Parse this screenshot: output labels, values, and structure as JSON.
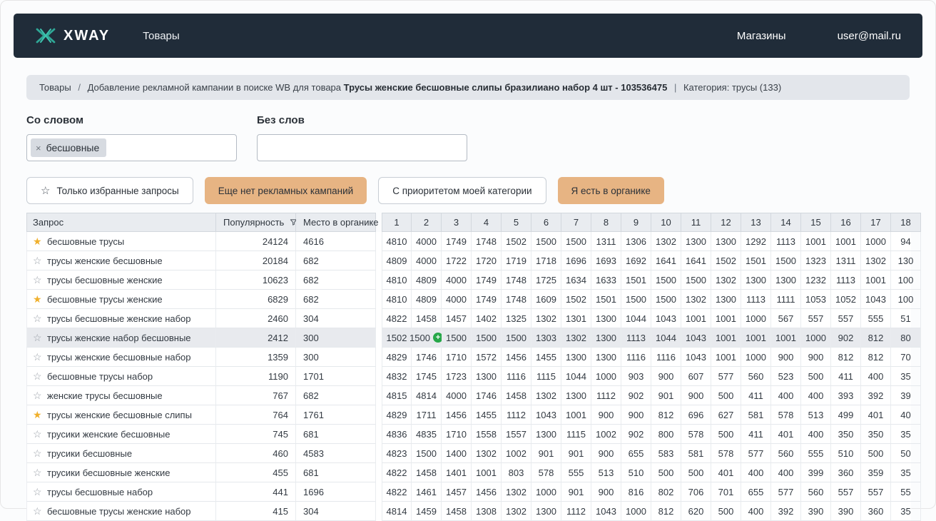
{
  "header": {
    "logo_text": "XWAY",
    "nav_products": "Товары",
    "shops": "Магазины",
    "user_email": "user@mail.ru"
  },
  "breadcrumb": {
    "root": "Товары",
    "separator": "/",
    "text": "Добавление рекламной кампании в поиске WB для товара",
    "product": "Трусы женские бесшовные слипы бразилиано набор 4 шт - 103536475",
    "pipe": "|",
    "category": "Категория: трусы (133)"
  },
  "filters": {
    "with_word_label": "Со словом",
    "with_word_tag": "бесшовные",
    "without_word_label": "Без слов",
    "without_word_value": ""
  },
  "toolbar": {
    "favorites_label": "Только избранные запросы",
    "no_campaigns_label": "Еще нет рекламных кампаний",
    "category_priority_label": "С приоритетом моей категории",
    "in_organic_label": "Я есть в органике"
  },
  "icons": {
    "star_outline": "☆",
    "star_filled": "★",
    "remove": "×",
    "plus": "+"
  },
  "table": {
    "query_header": "Запрос",
    "popularity_header": "Популярность",
    "organic_place_header": "Место в органике",
    "position_columns": [
      "1",
      "2",
      "3",
      "4",
      "5",
      "6",
      "7",
      "8",
      "9",
      "10",
      "11",
      "12",
      "13",
      "14",
      "15",
      "16",
      "17",
      "18"
    ],
    "rows": [
      {
        "starred": true,
        "query": "бесшовные трусы",
        "popularity": "24124",
        "place": "4616",
        "positions": [
          "4810",
          "4000",
          "1749",
          "1748",
          "1502",
          "1500",
          "1500",
          "1311",
          "1306",
          "1302",
          "1300",
          "1300",
          "1292",
          "1113",
          "1001",
          "1001",
          "1000",
          "94"
        ]
      },
      {
        "starred": false,
        "query": "трусы женские бесшовные",
        "popularity": "20184",
        "place": "682",
        "positions": [
          "4809",
          "4000",
          "1722",
          "1720",
          "1719",
          "1718",
          "1696",
          "1693",
          "1692",
          "1641",
          "1641",
          "1502",
          "1501",
          "1500",
          "1323",
          "1311",
          "1302",
          "130"
        ]
      },
      {
        "starred": false,
        "query": "трусы бесшовные женские",
        "popularity": "10623",
        "place": "682",
        "positions": [
          "4810",
          "4809",
          "4000",
          "1749",
          "1748",
          "1725",
          "1634",
          "1633",
          "1501",
          "1500",
          "1500",
          "1302",
          "1300",
          "1300",
          "1232",
          "1113",
          "1001",
          "100"
        ]
      },
      {
        "starred": true,
        "query": "бесшовные трусы женские",
        "popularity": "6829",
        "place": "682",
        "positions": [
          "4810",
          "4809",
          "4000",
          "1749",
          "1748",
          "1609",
          "1502",
          "1501",
          "1500",
          "1500",
          "1302",
          "1300",
          "1113",
          "1111",
          "1053",
          "1052",
          "1043",
          "100"
        ]
      },
      {
        "starred": false,
        "query": "трусы бесшовные женские набор",
        "popularity": "2460",
        "place": "304",
        "positions": [
          "4822",
          "1458",
          "1457",
          "1402",
          "1325",
          "1302",
          "1301",
          "1300",
          "1044",
          "1043",
          "1001",
          "1001",
          "1000",
          "567",
          "557",
          "557",
          "555",
          "51"
        ]
      },
      {
        "starred": false,
        "query": "трусы женские набор бесшовные",
        "popularity": "2412",
        "place": "300",
        "highlighted": true,
        "plus_badge_index": 1,
        "positions": [
          "1502",
          "1500",
          "1500",
          "1500",
          "1500",
          "1303",
          "1302",
          "1300",
          "1113",
          "1044",
          "1043",
          "1001",
          "1001",
          "1001",
          "1000",
          "902",
          "812",
          "80"
        ]
      },
      {
        "starred": false,
        "query": "трусы женские бесшовные набор",
        "popularity": "1359",
        "place": "300",
        "positions": [
          "4829",
          "1746",
          "1710",
          "1572",
          "1456",
          "1455",
          "1300",
          "1300",
          "1116",
          "1116",
          "1043",
          "1001",
          "1000",
          "900",
          "900",
          "812",
          "812",
          "70"
        ]
      },
      {
        "starred": false,
        "query": "бесшовные трусы набор",
        "popularity": "1190",
        "place": "1701",
        "positions": [
          "4832",
          "1745",
          "1723",
          "1300",
          "1116",
          "1115",
          "1044",
          "1000",
          "903",
          "900",
          "607",
          "577",
          "560",
          "523",
          "500",
          "411",
          "400",
          "35"
        ]
      },
      {
        "starred": false,
        "query": "женские трусы бесшовные",
        "popularity": "767",
        "place": "682",
        "positions": [
          "4815",
          "4814",
          "4000",
          "1746",
          "1458",
          "1302",
          "1300",
          "1112",
          "902",
          "901",
          "900",
          "500",
          "411",
          "400",
          "400",
          "393",
          "392",
          "39"
        ]
      },
      {
        "starred": true,
        "query": "трусы женские бесшовные слипы",
        "popularity": "764",
        "place": "1761",
        "positions": [
          "4829",
          "1711",
          "1456",
          "1455",
          "1112",
          "1043",
          "1001",
          "900",
          "900",
          "812",
          "696",
          "627",
          "581",
          "578",
          "513",
          "499",
          "401",
          "40"
        ]
      },
      {
        "starred": false,
        "query": "трусики женские бесшовные",
        "popularity": "745",
        "place": "681",
        "positions": [
          "4836",
          "4835",
          "1710",
          "1558",
          "1557",
          "1300",
          "1115",
          "1002",
          "902",
          "800",
          "578",
          "500",
          "411",
          "401",
          "400",
          "350",
          "350",
          "35"
        ]
      },
      {
        "starred": false,
        "query": "трусики бесшовные",
        "popularity": "460",
        "place": "4583",
        "positions": [
          "4823",
          "1500",
          "1400",
          "1302",
          "1002",
          "901",
          "901",
          "900",
          "655",
          "583",
          "581",
          "578",
          "577",
          "560",
          "555",
          "510",
          "500",
          "50"
        ]
      },
      {
        "starred": false,
        "query": "трусики бесшовные женские",
        "popularity": "455",
        "place": "681",
        "positions": [
          "4822",
          "1458",
          "1401",
          "1001",
          "803",
          "578",
          "555",
          "513",
          "510",
          "500",
          "500",
          "401",
          "400",
          "400",
          "399",
          "360",
          "359",
          "35"
        ]
      },
      {
        "starred": false,
        "query": "трусы бесшовные набор",
        "popularity": "441",
        "place": "1696",
        "positions": [
          "4822",
          "1461",
          "1457",
          "1456",
          "1302",
          "1000",
          "901",
          "900",
          "816",
          "802",
          "706",
          "701",
          "655",
          "577",
          "560",
          "557",
          "557",
          "55"
        ]
      },
      {
        "starred": false,
        "query": "бесшовные трусы женские набор",
        "popularity": "415",
        "place": "304",
        "positions": [
          "4814",
          "1459",
          "1458",
          "1308",
          "1302",
          "1300",
          "1112",
          "1043",
          "1000",
          "812",
          "620",
          "500",
          "400",
          "392",
          "390",
          "390",
          "360",
          "35"
        ]
      }
    ]
  }
}
